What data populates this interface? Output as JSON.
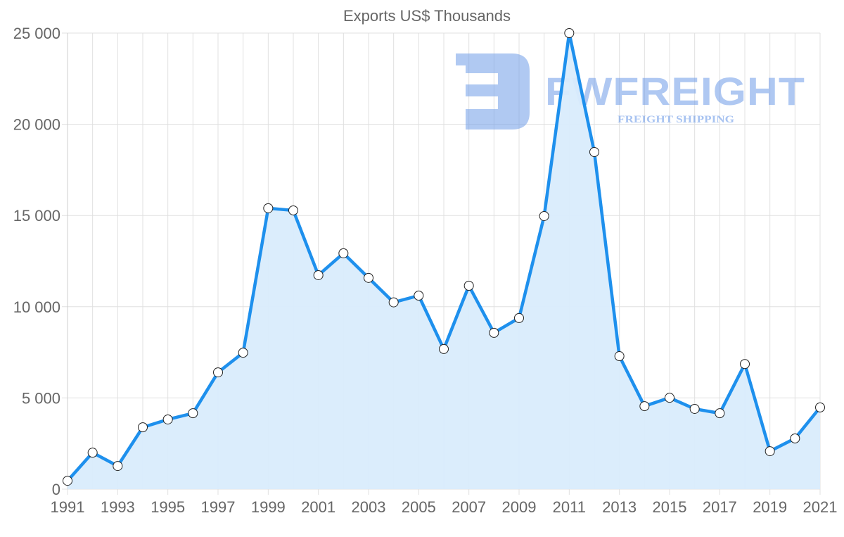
{
  "chart_data": {
    "type": "area",
    "title": "Exports US$ Thousands",
    "xlabel": "",
    "ylabel": "",
    "ylim": [
      0,
      25000
    ],
    "y_ticks": [
      "0",
      "5 000",
      "10 000",
      "15 000",
      "20 000",
      "25 000"
    ],
    "y_tick_values": [
      0,
      5000,
      10000,
      15000,
      20000,
      25000
    ],
    "x_tick_labels": [
      "1991",
      "1993",
      "1995",
      "1997",
      "1999",
      "2001",
      "2003",
      "2005",
      "2007",
      "2009",
      "2011",
      "2013",
      "2015",
      "2017",
      "2019",
      "2021"
    ],
    "grid": true,
    "legend": null,
    "x": [
      1991,
      1992,
      1993,
      1994,
      1995,
      1996,
      1997,
      1998,
      1999,
      2000,
      2001,
      2002,
      2003,
      2004,
      2005,
      2006,
      2007,
      2008,
      2009,
      2010,
      2011,
      2012,
      2013,
      2014,
      2015,
      2016,
      2017,
      2018,
      2019,
      2020,
      2021
    ],
    "series": [
      {
        "name": "Exports US$ Thousands",
        "values": [
          460,
          2000,
          1270,
          3390,
          3820,
          4160,
          6400,
          7480,
          15400,
          15280,
          11730,
          12930,
          11580,
          10240,
          10610,
          7680,
          11150,
          8570,
          9380,
          14970,
          25000,
          18480,
          7290,
          4550,
          5010,
          4400,
          4160,
          6860,
          2080,
          2780,
          4480
        ]
      }
    ],
    "colors": {
      "line": "#1e90ed",
      "fill": "#d9ecfc",
      "grid": "#e0e0e0",
      "axis_text": "#666666"
    }
  },
  "watermark": {
    "brand": "FWFREIGHT",
    "tagline": "FREIGHT SHIPPING"
  }
}
